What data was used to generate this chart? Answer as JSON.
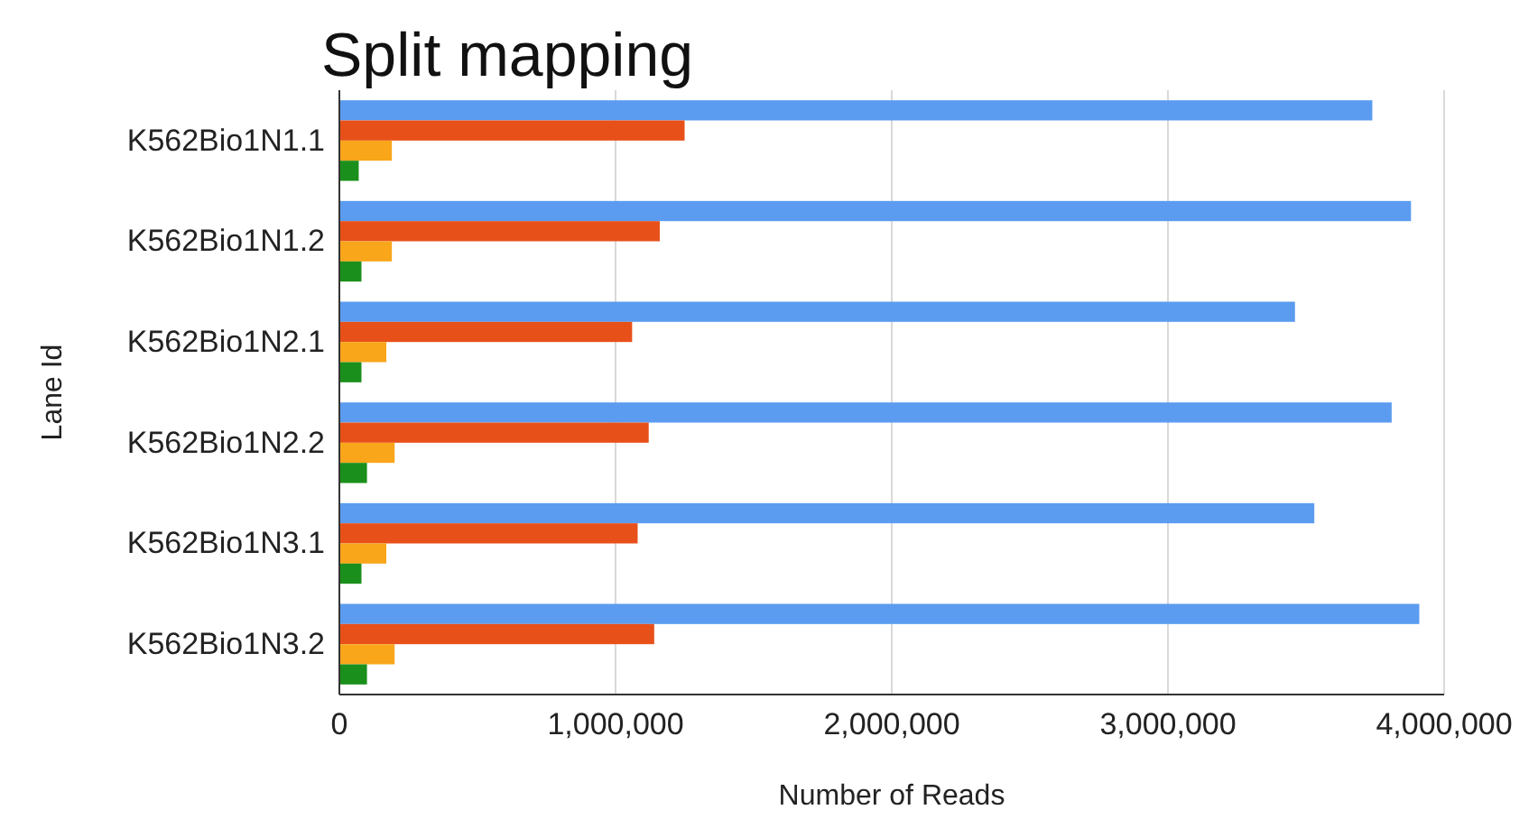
{
  "chart_data": {
    "type": "bar",
    "orientation": "horizontal",
    "title": "Split mapping",
    "xlabel": "Number of Reads",
    "ylabel": "Lane Id",
    "categories": [
      "K562Bio1N1.1",
      "K562Bio1N1.2",
      "K562Bio1N2.1",
      "K562Bio1N2.2",
      "K562Bio1N3.1",
      "K562Bio1N3.2"
    ],
    "series": [
      {
        "color": "#5b9cf0",
        "values": [
          3740000,
          3880000,
          3460000,
          3810000,
          3530000,
          3910000
        ]
      },
      {
        "color": "#e8501a",
        "values": [
          1250000,
          1160000,
          1060000,
          1120000,
          1080000,
          1140000
        ]
      },
      {
        "color": "#f9a61b",
        "values": [
          190000,
          190000,
          170000,
          200000,
          170000,
          200000
        ]
      },
      {
        "color": "#1b8f1b",
        "values": [
          70000,
          80000,
          80000,
          100000,
          80000,
          100000
        ]
      }
    ],
    "xlim": [
      0,
      4000000
    ],
    "xticks": [
      {
        "value": 0,
        "label": "0"
      },
      {
        "value": 1000000,
        "label": "1,000,000"
      },
      {
        "value": 2000000,
        "label": "2,000,000"
      },
      {
        "value": 3000000,
        "label": "3,000,000"
      },
      {
        "value": 4000000,
        "label": "4,000,000"
      }
    ],
    "grid": "x"
  }
}
